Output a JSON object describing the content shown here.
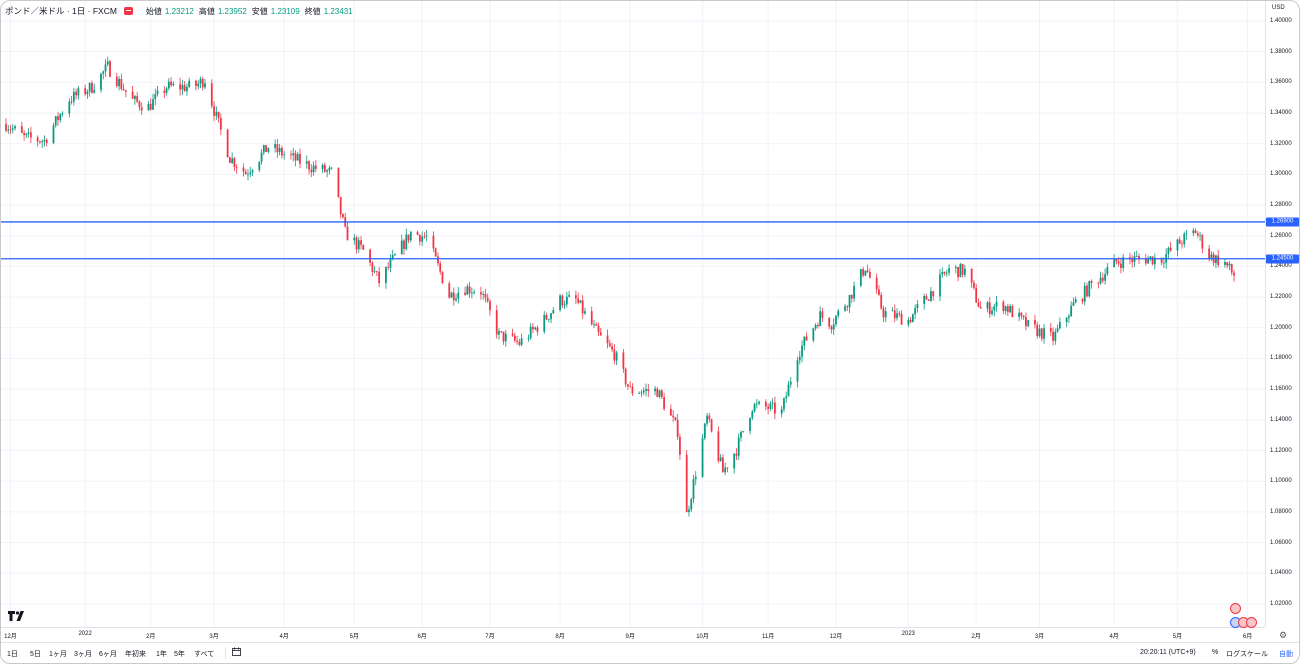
{
  "legend": {
    "symbol": "ポンド／米ドル · 1日 · FXCM",
    "open_label": "始値",
    "open": "1.23212",
    "high_label": "高値",
    "high": "1.23952",
    "low_label": "安値",
    "low": "1.23109",
    "close_label": "終値",
    "close": "1.23431"
  },
  "price_axis": {
    "currency": "USD",
    "ticks": [
      "1.40000",
      "1.38000",
      "1.36000",
      "1.34000",
      "1.32000",
      "1.30000",
      "1.28000",
      "1.26000",
      "1.24000",
      "1.22000",
      "1.20000",
      "1.18000",
      "1.16000",
      "1.14000",
      "1.12000",
      "1.10000",
      "1.08000",
      "1.06000",
      "1.04000",
      "1.02000"
    ],
    "horizontal_lines": [
      {
        "label": "1.26900",
        "value": 1.269
      },
      {
        "label": "1.24500",
        "value": 1.245
      }
    ]
  },
  "time_axis": {
    "ticks": [
      "12月",
      "2022",
      "2月",
      "3月",
      "4月",
      "5月",
      "6月",
      "7月",
      "8月",
      "9月",
      "10月",
      "11月",
      "12月",
      "2023",
      "2月",
      "3月",
      "4月",
      "5月",
      "6月"
    ]
  },
  "bottombar": {
    "ranges": [
      "1日",
      "5日",
      "1ヶ月",
      "3ヶ月",
      "6ヶ月",
      "年初来",
      "1年",
      "5年",
      "すべて"
    ],
    "time": "20:20:11 (UTC+9)",
    "percent": "%",
    "log": "ログスケール",
    "auto": "自動"
  },
  "colors": {
    "up": "#089981",
    "down": "#f23645",
    "line": "#2962ff",
    "grid": "#f0f3fa"
  },
  "chart_data": {
    "type": "candlestick",
    "y_range": [
      1.005,
      1.413
    ],
    "anchors": [
      [
        "2021-11-29",
        1.333
      ],
      [
        "2021-12-07",
        1.324
      ],
      [
        "2021-12-16",
        1.322
      ],
      [
        "2021-12-27",
        1.349
      ],
      [
        "2022-01-06",
        1.357
      ],
      [
        "2022-01-13",
        1.37
      ],
      [
        "2022-01-24",
        1.348
      ],
      [
        "2022-01-31",
        1.344
      ],
      [
        "2022-02-08",
        1.357
      ],
      [
        "2022-02-20",
        1.357
      ],
      [
        "2022-02-25",
        1.362
      ],
      [
        "2022-03-02",
        1.337
      ],
      [
        "2022-03-08",
        1.311
      ],
      [
        "2022-03-15",
        1.301
      ],
      [
        "2022-03-25",
        1.318
      ],
      [
        "2022-04-04",
        1.311
      ],
      [
        "2022-04-13",
        1.305
      ],
      [
        "2022-04-22",
        1.301
      ],
      [
        "2022-04-28",
        1.262
      ],
      [
        "2022-05-06",
        1.25
      ],
      [
        "2022-05-13",
        1.23
      ],
      [
        "2022-05-20",
        1.246
      ],
      [
        "2022-05-27",
        1.262
      ],
      [
        "2022-06-03",
        1.259
      ],
      [
        "2022-06-13",
        1.221
      ],
      [
        "2022-06-20",
        1.226
      ],
      [
        "2022-06-27",
        1.224
      ],
      [
        "2022-07-05",
        1.195
      ],
      [
        "2022-07-14",
        1.19
      ],
      [
        "2022-07-25",
        1.205
      ],
      [
        "2022-08-01",
        1.218
      ],
      [
        "2022-08-08",
        1.218
      ],
      [
        "2022-08-18",
        1.195
      ],
      [
        "2022-08-25",
        1.183
      ],
      [
        "2022-09-01",
        1.159
      ],
      [
        "2022-09-13",
        1.159
      ],
      [
        "2022-09-22",
        1.133
      ],
      [
        "2022-09-26",
        1.078
      ],
      [
        "2022-10-05",
        1.141
      ],
      [
        "2022-10-12",
        1.106
      ],
      [
        "2022-10-18",
        1.121
      ],
      [
        "2022-10-25",
        1.149
      ],
      [
        "2022-11-01",
        1.148
      ],
      [
        "2022-11-07",
        1.145
      ],
      [
        "2022-11-14",
        1.183
      ],
      [
        "2022-11-24",
        1.208
      ],
      [
        "2022-11-29",
        1.203
      ],
      [
        "2022-12-07",
        1.22
      ],
      [
        "2022-12-14",
        1.24
      ],
      [
        "2022-12-22",
        1.21
      ],
      [
        "2023-01-02",
        1.205
      ],
      [
        "2023-01-13",
        1.225
      ],
      [
        "2023-01-20",
        1.238
      ],
      [
        "2023-01-27",
        1.237
      ],
      [
        "2023-02-03",
        1.212
      ],
      [
        "2023-02-13",
        1.215
      ],
      [
        "2023-02-24",
        1.201
      ],
      [
        "2023-03-07",
        1.193
      ],
      [
        "2023-03-16",
        1.215
      ],
      [
        "2023-03-24",
        1.228
      ],
      [
        "2023-04-04",
        1.243
      ],
      [
        "2023-04-13",
        1.245
      ],
      [
        "2023-04-24",
        1.245
      ],
      [
        "2023-05-03",
        1.257
      ],
      [
        "2023-05-09",
        1.263
      ],
      [
        "2023-05-15",
        1.247
      ],
      [
        "2023-05-22",
        1.242
      ],
      [
        "2023-05-26",
        1.234
      ]
    ]
  }
}
